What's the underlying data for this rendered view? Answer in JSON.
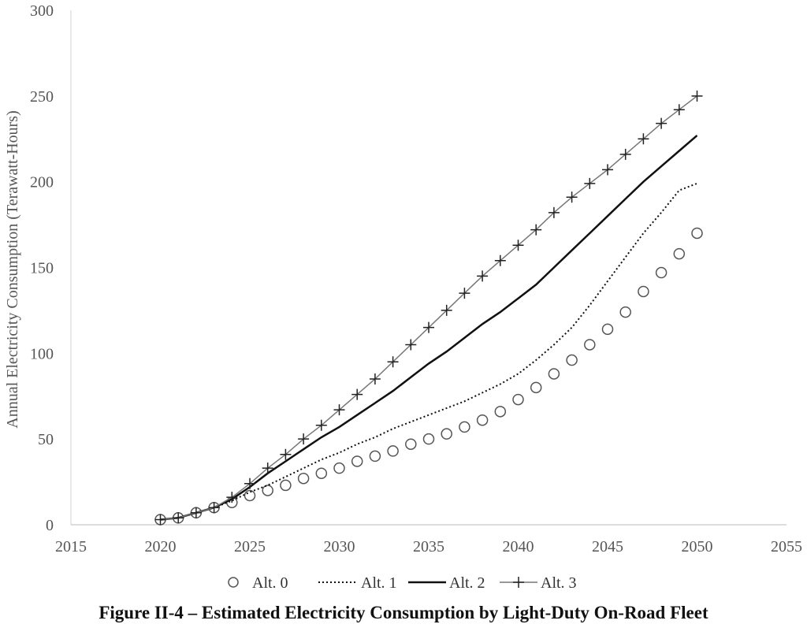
{
  "caption": "Figure II-4 – Estimated Electricity Consumption by Light-Duty On-Road Fleet",
  "chart_data": {
    "type": "line",
    "title": "",
    "xlabel": "",
    "ylabel": "Annual Electricity Consumption (Terawatt-Hours)",
    "xlim": [
      2015,
      2055
    ],
    "ylim": [
      0,
      300
    ],
    "xticks": [
      "2015",
      "2020",
      "2025",
      "2030",
      "2035",
      "2040",
      "2045",
      "2050",
      "2055"
    ],
    "yticks": [
      "0",
      "50",
      "100",
      "150",
      "200",
      "250",
      "300"
    ],
    "grid": false,
    "legend": "bottom",
    "x": [
      2020,
      2021,
      2022,
      2023,
      2024,
      2025,
      2026,
      2027,
      2028,
      2029,
      2030,
      2031,
      2032,
      2033,
      2034,
      2035,
      2036,
      2037,
      2038,
      2039,
      2040,
      2041,
      2042,
      2043,
      2044,
      2045,
      2046,
      2047,
      2048,
      2049,
      2050
    ],
    "series": [
      {
        "name": "Alt. 0",
        "style": "circle-markers",
        "color": "#555555",
        "values": [
          3,
          4,
          7,
          10,
          13,
          17,
          20,
          23,
          27,
          30,
          33,
          37,
          40,
          43,
          47,
          50,
          53,
          57,
          61,
          66,
          73,
          80,
          88,
          96,
          105,
          114,
          124,
          136,
          147,
          158,
          170
        ]
      },
      {
        "name": "Alt. 1",
        "style": "dotted",
        "color": "#111111",
        "values": [
          3,
          4,
          7,
          10,
          14,
          19,
          23,
          28,
          33,
          38,
          42,
          47,
          51,
          56,
          60,
          64,
          68,
          72,
          77,
          82,
          88,
          96,
          105,
          115,
          128,
          142,
          156,
          170,
          182,
          195,
          199
        ]
      },
      {
        "name": "Alt. 2",
        "style": "solid",
        "color": "#111111",
        "values": [
          3,
          4,
          7,
          10,
          15,
          22,
          30,
          37,
          44,
          51,
          57,
          64,
          71,
          78,
          86,
          94,
          101,
          109,
          117,
          124,
          132,
          140,
          150,
          160,
          170,
          180,
          190,
          200,
          209,
          218,
          227
        ]
      },
      {
        "name": "Alt. 3",
        "style": "plus-markers",
        "color": "#777777",
        "values": [
          3,
          4,
          7,
          10,
          16,
          24,
          33,
          41,
          50,
          58,
          67,
          76,
          85,
          95,
          105,
          115,
          125,
          135,
          145,
          154,
          163,
          172,
          182,
          191,
          199,
          207,
          216,
          225,
          234,
          242,
          250
        ]
      }
    ]
  }
}
